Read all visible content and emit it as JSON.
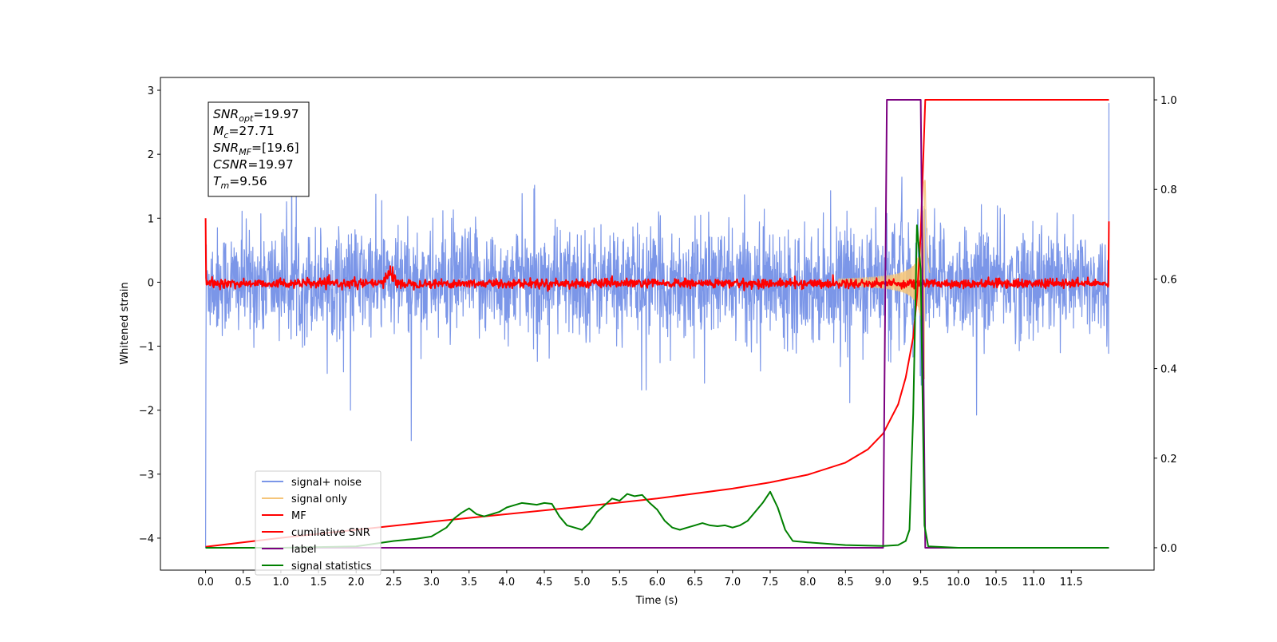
{
  "chart_data": {
    "type": "line",
    "xlabel": "Time (s)",
    "ylabel": "Whitened strain",
    "xlim": [
      -0.6,
      12.6
    ],
    "ylim_left": [
      -4.5,
      3.2
    ],
    "ylim_right": [
      -0.05,
      1.05
    ],
    "grid": false,
    "legend_position": "lower-left",
    "x_ticks": [
      "0.0",
      "0.5",
      "1.0",
      "1.5",
      "2.0",
      "2.5",
      "3.0",
      "3.5",
      "4.0",
      "4.5",
      "5.0",
      "5.5",
      "6.0",
      "6.5",
      "7.0",
      "7.5",
      "8.0",
      "8.5",
      "9.0",
      "9.5",
      "10.0",
      "10.5",
      "11.0",
      "11.5"
    ],
    "x_tick_values": [
      0.0,
      0.5,
      1.0,
      1.5,
      2.0,
      2.5,
      3.0,
      3.5,
      4.0,
      4.5,
      5.0,
      5.5,
      6.0,
      6.5,
      7.0,
      7.5,
      8.0,
      8.5,
      9.0,
      9.5,
      10.0,
      10.5,
      11.0,
      11.5
    ],
    "y_ticks_left": [
      "3",
      "2",
      "1",
      "0",
      "−1",
      "−2",
      "−3",
      "−4"
    ],
    "y_tick_values_left": [
      3,
      2,
      1,
      0,
      -1,
      -2,
      -3,
      -4
    ],
    "y_ticks_right": [
      "1.0",
      "0.8",
      "0.6",
      "0.4",
      "0.2",
      "0.0"
    ],
    "y_tick_values_right": [
      1.0,
      0.8,
      0.6,
      0.4,
      0.2,
      0.0
    ],
    "annotation": {
      "lines": [
        {
          "sym": "SNR",
          "sub": "opt",
          "value": "=19.97"
        },
        {
          "sym": "M",
          "sub": "c",
          "value": "=27.71"
        },
        {
          "sym": "SNR",
          "sub": "MF",
          "value": "=[19.6]"
        },
        {
          "sym": "CSNR",
          "sub": "",
          "value": "=19.97"
        },
        {
          "sym": "T",
          "sub": "m",
          "value": "=9.56"
        }
      ]
    },
    "series": [
      {
        "name": "signal+ noise",
        "color": "#7b96e8",
        "axis": "left",
        "description_amplitude": 1.0,
        "t_range": [
          0,
          12
        ]
      },
      {
        "name": "signal only",
        "color": "#f5c57a",
        "axis": "left",
        "chirp_merger_time": 9.56,
        "t_range": [
          0,
          12
        ]
      },
      {
        "name": "MF",
        "color": "#ff0000",
        "axis": "left",
        "t_range": [
          0,
          12
        ],
        "edge_values": [
          1.0,
          0.95
        ],
        "bump_at": 2.45
      },
      {
        "name": "cumilative SNR",
        "color": "#ff0000",
        "axis": "right",
        "x": [
          0,
          1,
          2,
          3,
          4,
          5,
          6,
          7,
          7.5,
          8,
          8.5,
          8.8,
          9,
          9.2,
          9.3,
          9.4,
          9.45,
          9.5,
          9.56,
          12
        ],
        "y": [
          0.002,
          0.022,
          0.04,
          0.058,
          0.075,
          0.092,
          0.11,
          0.132,
          0.146,
          0.163,
          0.19,
          0.22,
          0.255,
          0.32,
          0.38,
          0.47,
          0.56,
          0.7,
          1.0,
          1.0
        ]
      },
      {
        "name": "label",
        "color": "#7b0080",
        "axis": "right",
        "x": [
          0,
          9.0,
          9.05,
          9.5,
          9.56,
          12
        ],
        "y": [
          0.0,
          0.0,
          1.0,
          1.0,
          0.0,
          0.0
        ]
      },
      {
        "name": "signal statistics",
        "color": "#008000",
        "axis": "right",
        "x": [
          0,
          1,
          2,
          2.5,
          2.8,
          3.0,
          3.1,
          3.2,
          3.3,
          3.4,
          3.5,
          3.6,
          3.7,
          3.8,
          3.9,
          4.0,
          4.1,
          4.2,
          4.3,
          4.4,
          4.5,
          4.6,
          4.7,
          4.8,
          4.9,
          5.0,
          5.1,
          5.2,
          5.3,
          5.4,
          5.5,
          5.6,
          5.7,
          5.8,
          5.9,
          6.0,
          6.1,
          6.2,
          6.3,
          6.4,
          6.5,
          6.6,
          6.7,
          6.8,
          6.9,
          7.0,
          7.1,
          7.2,
          7.3,
          7.4,
          7.5,
          7.6,
          7.7,
          7.8,
          8.0,
          8.5,
          9.0,
          9.2,
          9.3,
          9.35,
          9.4,
          9.45,
          9.5,
          9.55,
          9.6,
          10,
          11,
          12
        ],
        "y": [
          0.0,
          0.0,
          0.003,
          0.015,
          0.02,
          0.025,
          0.035,
          0.045,
          0.065,
          0.078,
          0.088,
          0.075,
          0.07,
          0.075,
          0.08,
          0.09,
          0.095,
          0.1,
          0.098,
          0.096,
          0.1,
          0.098,
          0.07,
          0.05,
          0.045,
          0.04,
          0.055,
          0.08,
          0.095,
          0.11,
          0.105,
          0.12,
          0.115,
          0.118,
          0.1,
          0.085,
          0.06,
          0.045,
          0.04,
          0.045,
          0.05,
          0.055,
          0.05,
          0.048,
          0.05,
          0.045,
          0.05,
          0.06,
          0.08,
          0.1,
          0.125,
          0.09,
          0.04,
          0.015,
          0.012,
          0.006,
          0.004,
          0.006,
          0.015,
          0.04,
          0.3,
          0.72,
          0.62,
          0.05,
          0.003,
          0.0,
          0.0,
          0.0
        ]
      }
    ]
  }
}
